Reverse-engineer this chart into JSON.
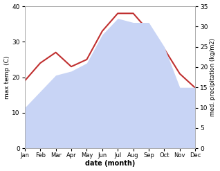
{
  "months": [
    "Jan",
    "Feb",
    "Mar",
    "Apr",
    "May",
    "Jun",
    "Jul",
    "Aug",
    "Sep",
    "Oct",
    "Nov",
    "Dec"
  ],
  "temperature": [
    19,
    24,
    27,
    23,
    25,
    33,
    38,
    38,
    33,
    28,
    21,
    17
  ],
  "precipitation": [
    10,
    14,
    18,
    19,
    21,
    28,
    32,
    31,
    31,
    25,
    15,
    15
  ],
  "temp_color": "#c03030",
  "precip_color_fill": "#c8d4f5",
  "temp_ylim": [
    0,
    40
  ],
  "precip_ylim": [
    0,
    35
  ],
  "xlabel": "date (month)",
  "ylabel_left": "max temp (C)",
  "ylabel_right": "med. precipitation (kg/m2)",
  "background_color": "#ffffff"
}
